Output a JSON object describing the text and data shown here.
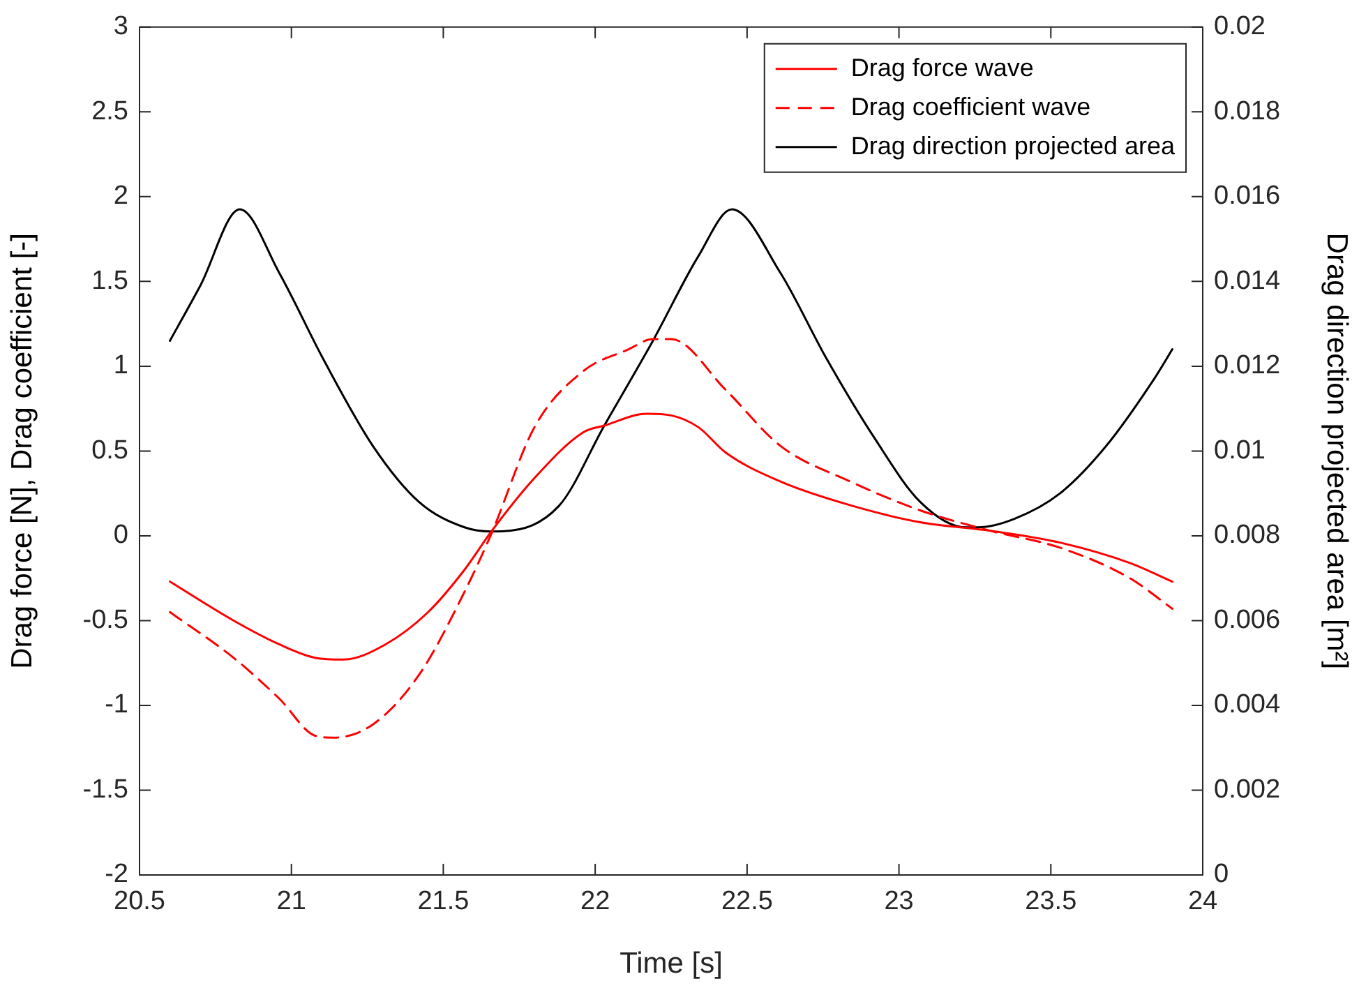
{
  "chart_data": {
    "type": "line",
    "xlabel": "Time [s]",
    "ylabel": "Drag force [N], Drag coefficient [-]",
    "y2label": "Drag direction projected area [m²]",
    "xlim": [
      20.5,
      24
    ],
    "xticks": [
      20.5,
      21,
      21.5,
      22,
      22.5,
      23,
      23.5,
      24
    ],
    "ylim": [
      -2,
      3
    ],
    "yticks": [
      -2,
      -1.5,
      -1,
      -0.5,
      0,
      0.5,
      1,
      1.5,
      2,
      2.5,
      3
    ],
    "y2lim": [
      0,
      0.02
    ],
    "y2ticks": [
      0,
      0.002,
      0.004,
      0.006,
      0.008,
      0.01,
      0.012,
      0.014,
      0.016,
      0.018,
      0.02
    ],
    "grid": false,
    "legend": "top right",
    "marker": "none",
    "series": [
      {
        "name": "Drag force wave",
        "color": "#ff0000",
        "line_style": "solid",
        "x": [
          20.6,
          20.81,
          20.96,
          21.08,
          21.17,
          21.31,
          21.45,
          21.57,
          21.66,
          21.8,
          21.96,
          22.03,
          22.17,
          22.25,
          22.34,
          22.43,
          22.61,
          22.84,
          23.07,
          23.3,
          23.53,
          23.76,
          23.9
        ],
        "values": [
          -0.27,
          -0.5,
          -0.64,
          -0.72,
          -0.73,
          -0.64,
          -0.45,
          -0.2,
          0.03,
          0.34,
          0.61,
          0.65,
          0.72,
          0.71,
          0.64,
          0.49,
          0.32,
          0.18,
          0.08,
          0.03,
          -0.04,
          -0.16,
          -0.27
        ]
      },
      {
        "name": "Drag coefficient wave",
        "color": "#ff0000",
        "line_style": "dashed",
        "x": [
          20.6,
          20.81,
          20.96,
          21.08,
          21.14,
          21.27,
          21.42,
          21.57,
          21.66,
          21.8,
          21.96,
          22.11,
          22.19,
          22.25,
          22.43,
          22.61,
          22.84,
          23.07,
          23.3,
          23.53,
          23.76,
          23.9
        ],
        "values": [
          -0.45,
          -0.72,
          -0.96,
          -1.18,
          -1.19,
          -1.11,
          -0.82,
          -0.33,
          0.02,
          0.64,
          0.97,
          1.1,
          1.16,
          1.16,
          0.86,
          0.53,
          0.32,
          0.15,
          0.03,
          -0.07,
          -0.25,
          -0.43
        ]
      },
      {
        "name": "Drag direction projected area",
        "color": "#000000",
        "line_style": "solid",
        "axis": "y2",
        "x": [
          20.6,
          20.7,
          20.83,
          20.96,
          21.11,
          21.27,
          21.42,
          21.57,
          21.66,
          21.88,
          22.03,
          22.19,
          22.34,
          22.45,
          22.61,
          22.76,
          22.92,
          23.07,
          23.22,
          23.26,
          23.38,
          23.53,
          23.68,
          23.84,
          23.9
        ],
        "values": [
          0.0126,
          0.0139,
          0.0157,
          0.0142,
          0.0121,
          0.0101,
          0.0088,
          0.0082,
          0.0081,
          0.0087,
          0.0106,
          0.0126,
          0.0146,
          0.0157,
          0.0142,
          0.0122,
          0.0103,
          0.0088,
          0.0082,
          0.0082,
          0.0084,
          0.009,
          0.0101,
          0.0117,
          0.0124
        ]
      }
    ]
  }
}
